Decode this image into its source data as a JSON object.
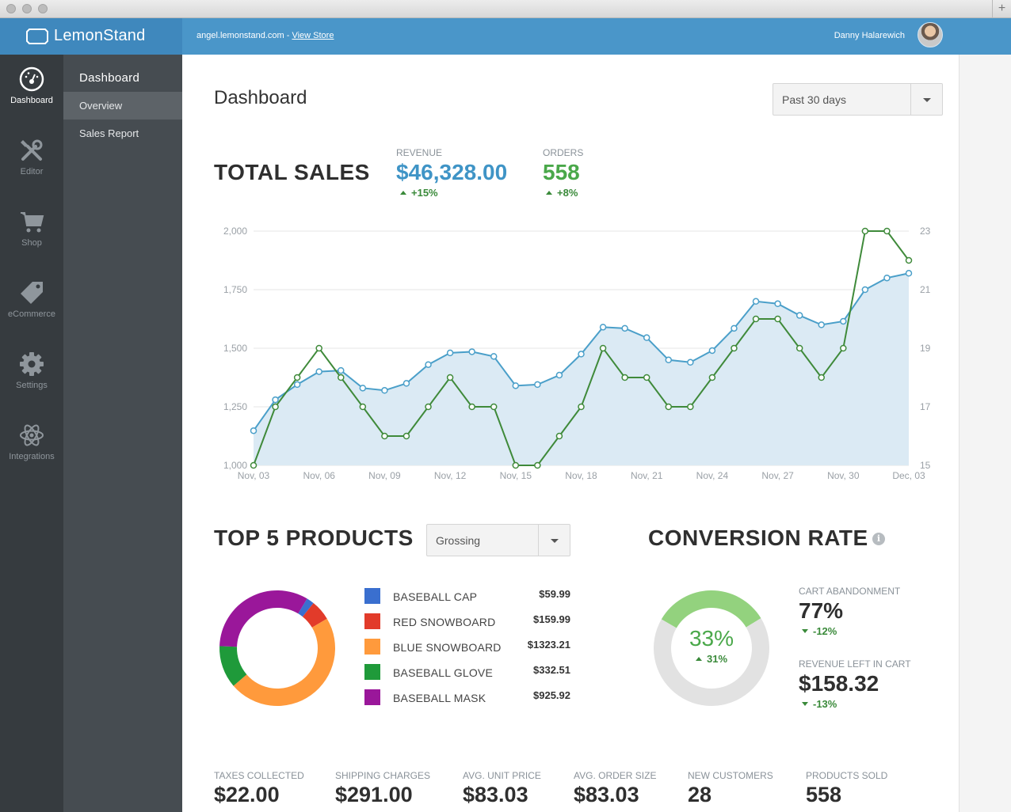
{
  "topbar": {
    "brand": "LemonStand",
    "store_url": "angel.lemonstand.com -",
    "view_store": "View Store",
    "user_name": "Danny Halarewich"
  },
  "iconbar": [
    {
      "label": "Dashboard",
      "icon": "dashboard-gauge-icon",
      "active": true
    },
    {
      "label": "Editor",
      "icon": "tools-icon",
      "active": false
    },
    {
      "label": "Shop",
      "icon": "cart-icon",
      "active": false
    },
    {
      "label": "eCommerce",
      "icon": "tag-icon",
      "active": false
    },
    {
      "label": "Settings",
      "icon": "gear-icon",
      "active": false
    },
    {
      "label": "Integrations",
      "icon": "atom-icon",
      "active": false
    }
  ],
  "subnav": {
    "title": "Dashboard",
    "items": [
      {
        "label": "Overview",
        "active": true
      },
      {
        "label": "Sales Report",
        "active": false
      }
    ]
  },
  "page": {
    "title": "Dashboard",
    "range_select": "Past 30 days"
  },
  "total_sales": {
    "heading": "TOTAL SALES",
    "revenue_label": "REVENUE",
    "revenue_value": "$46,328.00",
    "revenue_delta": "+15%",
    "orders_label": "ORDERS",
    "orders_value": "558",
    "orders_delta": "+8%"
  },
  "chart_data": [
    {
      "type": "area",
      "x_tick_labels": [
        "Nov, 03",
        "Nov, 06",
        "Nov, 09",
        "Nov, 12",
        "Nov, 15",
        "Nov, 18",
        "Nov, 21",
        "Nov, 24",
        "Nov, 27",
        "Nov, 30",
        "Dec, 03"
      ],
      "x": [
        "Nov 03",
        "Nov 04",
        "Nov 05",
        "Nov 06",
        "Nov 07",
        "Nov 08",
        "Nov 09",
        "Nov 10",
        "Nov 11",
        "Nov 12",
        "Nov 13",
        "Nov 14",
        "Nov 15",
        "Nov 16",
        "Nov 17",
        "Nov 18",
        "Nov 19",
        "Nov 20",
        "Nov 21",
        "Nov 22",
        "Nov 23",
        "Nov 24",
        "Nov 25",
        "Nov 26",
        "Nov 27",
        "Nov 28",
        "Nov 29",
        "Nov 30",
        "Dec 01",
        "Dec 02",
        "Dec 03"
      ],
      "y_left_ticks": [
        "1,000",
        "1,250",
        "1,500",
        "1,750",
        "2,000"
      ],
      "ylim_left": [
        1000,
        2000
      ],
      "y_right_ticks": [
        "15",
        "17",
        "19",
        "21",
        "23"
      ],
      "ylim_right": [
        15,
        23
      ],
      "grid": true,
      "series": [
        {
          "axis": "left",
          "color": "#4a9fc9",
          "fill": "#dbeaf4",
          "values": [
            1148,
            1280,
            1345,
            1400,
            1405,
            1330,
            1320,
            1350,
            1430,
            1480,
            1485,
            1465,
            1340,
            1345,
            1385,
            1475,
            1590,
            1585,
            1545,
            1450,
            1440,
            1490,
            1585,
            1700,
            1690,
            1640,
            1600,
            1615,
            1750,
            1800,
            1820
          ]
        },
        {
          "axis": "right",
          "color": "#3f8a3a",
          "values": [
            15,
            17,
            18,
            19,
            18,
            17,
            16,
            16,
            17,
            18,
            17,
            17,
            15,
            15,
            16,
            17,
            19,
            18,
            18,
            17,
            17,
            18,
            19,
            20,
            20,
            19,
            18,
            19,
            23,
            23,
            22
          ]
        }
      ]
    },
    {
      "type": "pie",
      "variant": "donut",
      "categories": [
        "BASEBALL CAP",
        "RED SNOWBOARD",
        "BLUE SNOWBOARD",
        "BASEBALL GLOVE",
        "BASEBALL MASK"
      ],
      "values": [
        59.99,
        159.99,
        1323.21,
        332.51,
        925.92
      ],
      "colors": [
        "#3a6fcf",
        "#e23b2a",
        "#ff9a3c",
        "#1f9a3a",
        "#9a179a"
      ]
    },
    {
      "type": "pie",
      "variant": "donut",
      "categories": [
        "conversion",
        "remaining"
      ],
      "values": [
        33,
        67
      ],
      "colors": [
        "#93d27e",
        "#e2e2e2"
      ]
    }
  ],
  "top_products": {
    "heading": "TOP 5 PRODUCTS",
    "select": "Grossing",
    "items": [
      {
        "name": "BASEBALL CAP",
        "price": "$59.99",
        "color": "#3a6fcf"
      },
      {
        "name": "RED SNOWBOARD",
        "price": "$159.99",
        "color": "#e23b2a"
      },
      {
        "name": "BLUE SNOWBOARD",
        "price": "$1323.21",
        "color": "#ff9a3c"
      },
      {
        "name": "BASEBALL GLOVE",
        "price": "$332.51",
        "color": "#1f9a3a"
      },
      {
        "name": "BASEBALL MASK",
        "price": "$925.92",
        "color": "#9a179a"
      }
    ]
  },
  "conversion": {
    "heading": "CONVERSION RATE",
    "info_icon": "info-icon",
    "rate": "33%",
    "rate_delta": "31%",
    "cart_abandonment_label": "CART ABANDONMENT",
    "cart_abandonment_value": "77%",
    "cart_abandonment_delta": "-12%",
    "revenue_left_label": "REVENUE LEFT IN CART",
    "revenue_left_value": "$158.32",
    "revenue_left_delta": "-13%"
  },
  "stats": [
    {
      "label": "TAXES COLLECTED",
      "value": "$22.00"
    },
    {
      "label": "SHIPPING CHARGES",
      "value": "$291.00"
    },
    {
      "label": "AVG. UNIT PRICE",
      "value": "$83.03"
    },
    {
      "label": "AVG. ORDER SIZE",
      "value": "$83.03"
    },
    {
      "label": "NEW CUSTOMERS",
      "value": "28"
    },
    {
      "label": "PRODUCTS SOLD",
      "value": "558"
    }
  ]
}
